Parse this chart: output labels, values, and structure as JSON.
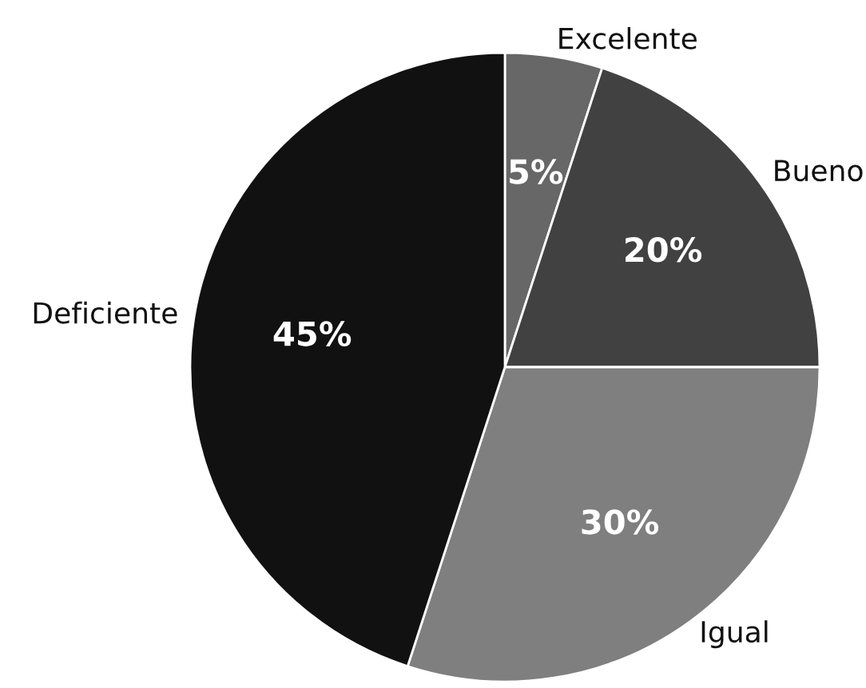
{
  "chart_data": {
    "type": "pie",
    "categories": [
      "Excelente",
      "Bueno",
      "Igual",
      "Deficiente"
    ],
    "values": [
      5,
      20,
      30,
      45
    ],
    "value_labels": [
      "5%",
      "20%",
      "30%",
      "45%"
    ],
    "colors": [
      "#676767",
      "#414141",
      "#7f7f7f",
      "#111111"
    ],
    "legend": false
  }
}
